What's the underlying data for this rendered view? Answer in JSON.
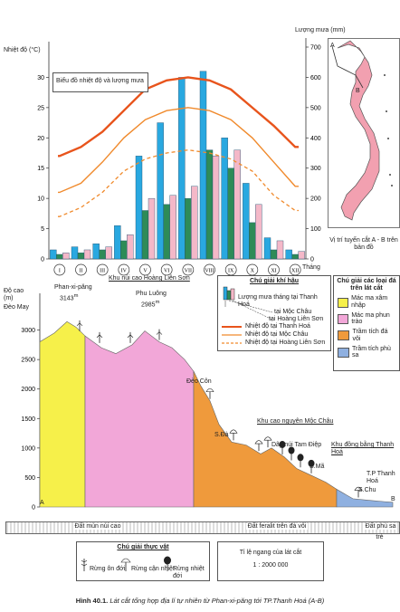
{
  "chart_data": {
    "type": "bar",
    "title_box": "Biểu đồ nhiệt độ và lượng mưa",
    "y_left_label": "Nhiệt độ (°C)",
    "y_right_label": "Lượng mưa (mm)",
    "x_label": "Tháng",
    "ylim_left": [
      0,
      35
    ],
    "ylim_right": [
      0,
      700
    ],
    "left_ticks": [
      "0",
      "5",
      "10",
      "15",
      "20",
      "25",
      "30"
    ],
    "right_ticks": [
      "0",
      "100",
      "200",
      "300",
      "400",
      "500",
      "600",
      "700"
    ],
    "categories": [
      "I",
      "II",
      "III",
      "IV",
      "V",
      "VI",
      "VII",
      "VIII",
      "IX",
      "X",
      "XI",
      "XII"
    ],
    "series": [
      {
        "name": "Lượng mưa tháng tại Thanh Hoá",
        "color": "#29a8e0",
        "values": [
          30,
          40,
          50,
          110,
          340,
          450,
          600,
          620,
          400,
          250,
          70,
          30
        ]
      },
      {
        "name": "tại Mộc Châu",
        "color": "#2e8b57",
        "values": [
          15,
          20,
          30,
          60,
          160,
          180,
          200,
          360,
          300,
          120,
          30,
          15
        ]
      },
      {
        "name": "tại Hoàng Liên Sơn",
        "color": "#f4b8c8",
        "values": [
          20,
          30,
          40,
          80,
          200,
          210,
          240,
          340,
          360,
          180,
          60,
          25
        ]
      }
    ],
    "temp_lines": [
      {
        "name": "Nhiệt độ tại Thanh Hoá",
        "color": "#e8541c",
        "dash": false,
        "values": [
          17,
          18.5,
          21,
          24.5,
          28,
          29.5,
          30,
          29.5,
          28,
          25,
          22,
          18.5
        ]
      },
      {
        "name": "Nhiệt độ tại Mộc Châu",
        "color": "#f08a2c",
        "dash": false,
        "values": [
          11,
          12.5,
          16,
          20,
          23,
          24.5,
          25,
          24.5,
          23,
          20,
          16,
          12
        ]
      },
      {
        "name": "Nhiệt độ tại Hoàng Liên Sơn",
        "color": "#f08a2c",
        "dash": true,
        "values": [
          7,
          8.5,
          11,
          14.5,
          16.5,
          17.5,
          18,
          17.5,
          16.5,
          14.5,
          10.5,
          8
        ]
      }
    ]
  },
  "map": {
    "caption": "Vị trí tuyến cắt A - B trên bản đồ",
    "label_a": "A",
    "label_b": "B"
  },
  "profile": {
    "y_axis_label": "Độ cao (m)",
    "y_ticks": [
      "0",
      "500",
      "1000",
      "1500",
      "2000",
      "2500",
      "3000"
    ],
    "places": {
      "deo_may": "Đèo May",
      "phan_xi_pang": "Phan-xi-păng",
      "phan_height": "3143",
      "phan_unit": "m",
      "khu_nui_cao": "Khu núi cao Hoàng Liên Sơn",
      "phu_luong": "Phu Luông",
      "phu_luong_height": "2985",
      "deo_con": "Đèo Côn",
      "s_da": "S.Đà",
      "khu_cao_nguyen": "Khu cao nguyên Mộc Châu",
      "day_tam_diep": "Dãy núi Tam Điệp",
      "s_ma": "S.Mã",
      "khu_dong_bang": "Khu đồng bằng Thanh Hoá",
      "tp_thanh_hoa": "T.P Thanh Hoá",
      "s_chu": "S.Chu",
      "a": "A",
      "b": "B"
    },
    "soils": [
      "Đất mùn núi cao",
      "Đất feralit trên đá vôi",
      "Đất phù sa trẻ"
    ]
  },
  "climate_legend": {
    "title": "Chú giải khí hậu",
    "rain_label": "Lượng mưa tháng tại Thanh Hoá",
    "moc_chau": "tại Mộc Châu",
    "hoang_lien": "tại Hoàng Liên Sơn",
    "temp_th": "Nhiệt độ tại Thanh Hoá",
    "temp_mc": "Nhiệt độ tại Mộc Châu",
    "temp_hl": "Nhiệt độ tại Hoàng Liên Sơn"
  },
  "rock_legend": {
    "title": "Chú giải các loại đá trên lát cắt",
    "items": [
      {
        "label": "Mác ma xâm nhập",
        "color": "#f6f04a"
      },
      {
        "label": "Mác ma phun trào",
        "color": "#f2a7d8"
      },
      {
        "label": "Trầm tích đá vôi",
        "color": "#ef9a3c"
      },
      {
        "label": "Trầm tích phù sa",
        "color": "#8fb0e0"
      }
    ]
  },
  "veg_legend": {
    "title": "Chú giải thực vật",
    "items": [
      "Rừng ôn đới",
      "Rừng cận nhiệt",
      "Rừng nhiệt đới"
    ]
  },
  "scale": {
    "label": "Tỉ lệ ngang của lát cắt",
    "value": "1 : 2000 000"
  },
  "caption": {
    "prefix": "Hình 40.1.",
    "text": "Lát cắt tổng hợp địa lí tự nhiên từ Phan-xi-păng tới TP.Thanh Hoá (A-B)"
  }
}
